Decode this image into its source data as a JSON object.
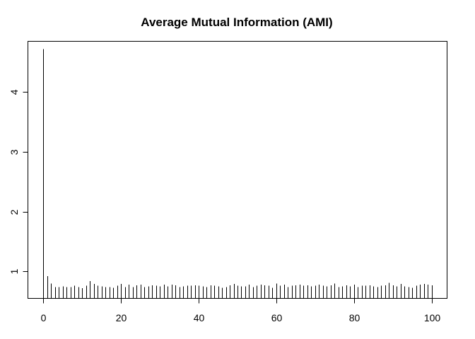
{
  "chart_data": {
    "type": "bar",
    "title": "Average Mutual Information (AMI)",
    "xlabel": "",
    "ylabel": "",
    "xlim": [
      -4,
      104
    ],
    "ylim": [
      0.55,
      4.85
    ],
    "x_ticks": [
      0,
      20,
      40,
      60,
      80,
      100
    ],
    "y_ticks": [
      1,
      2,
      3,
      4
    ],
    "grid": false,
    "x": [
      0,
      1,
      2,
      3,
      4,
      5,
      6,
      7,
      8,
      9,
      10,
      11,
      12,
      13,
      14,
      15,
      16,
      17,
      18,
      19,
      20,
      21,
      22,
      23,
      24,
      25,
      26,
      27,
      28,
      29,
      30,
      31,
      32,
      33,
      34,
      35,
      36,
      37,
      38,
      39,
      40,
      41,
      42,
      43,
      44,
      45,
      46,
      47,
      48,
      49,
      50,
      51,
      52,
      53,
      54,
      55,
      56,
      57,
      58,
      59,
      60,
      61,
      62,
      63,
      64,
      65,
      66,
      67,
      68,
      69,
      70,
      71,
      72,
      73,
      74,
      75,
      76,
      77,
      78,
      79,
      80,
      81,
      82,
      83,
      84,
      85,
      86,
      87,
      88,
      89,
      90,
      91,
      92,
      93,
      94,
      95,
      96,
      97,
      98,
      99,
      100
    ],
    "values": [
      4.72,
      0.92,
      0.8,
      0.74,
      0.74,
      0.75,
      0.74,
      0.74,
      0.76,
      0.74,
      0.72,
      0.76,
      0.84,
      0.79,
      0.76,
      0.75,
      0.74,
      0.74,
      0.73,
      0.76,
      0.79,
      0.74,
      0.78,
      0.74,
      0.77,
      0.78,
      0.74,
      0.75,
      0.77,
      0.76,
      0.75,
      0.78,
      0.75,
      0.78,
      0.77,
      0.74,
      0.75,
      0.76,
      0.76,
      0.77,
      0.76,
      0.75,
      0.74,
      0.77,
      0.76,
      0.75,
      0.73,
      0.74,
      0.77,
      0.79,
      0.76,
      0.75,
      0.75,
      0.78,
      0.74,
      0.76,
      0.78,
      0.77,
      0.76,
      0.73,
      0.8,
      0.76,
      0.78,
      0.74,
      0.76,
      0.77,
      0.78,
      0.76,
      0.77,
      0.75,
      0.76,
      0.78,
      0.76,
      0.75,
      0.77,
      0.8,
      0.74,
      0.75,
      0.77,
      0.75,
      0.78,
      0.74,
      0.76,
      0.76,
      0.77,
      0.75,
      0.74,
      0.76,
      0.77,
      0.81,
      0.77,
      0.75,
      0.79,
      0.75,
      0.74,
      0.73,
      0.76,
      0.78,
      0.79,
      0.78,
      0.77
    ]
  }
}
